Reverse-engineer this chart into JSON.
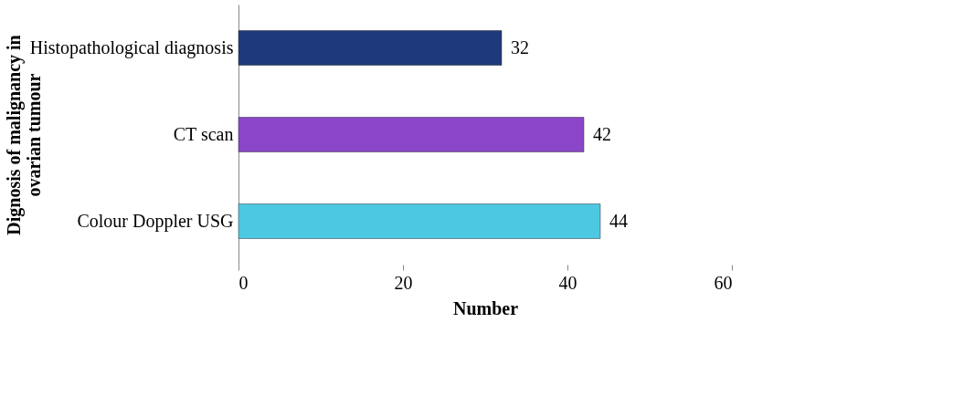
{
  "chart_data": {
    "type": "bar",
    "orientation": "horizontal",
    "categories": [
      "Histopathological diagnosis",
      "CT scan",
      "Colour Doppler USG"
    ],
    "values": [
      32,
      42,
      44
    ],
    "colors": [
      "#1f3a7a",
      "#8a45c8",
      "#4cc8e2"
    ],
    "xlabel": "Number",
    "ylabel": "Dignosis of malignancy in\novarian tumour",
    "xlim": [
      0,
      60
    ],
    "xticks": [
      0,
      20,
      40,
      60
    ],
    "grid": false,
    "data_labels": true
  }
}
